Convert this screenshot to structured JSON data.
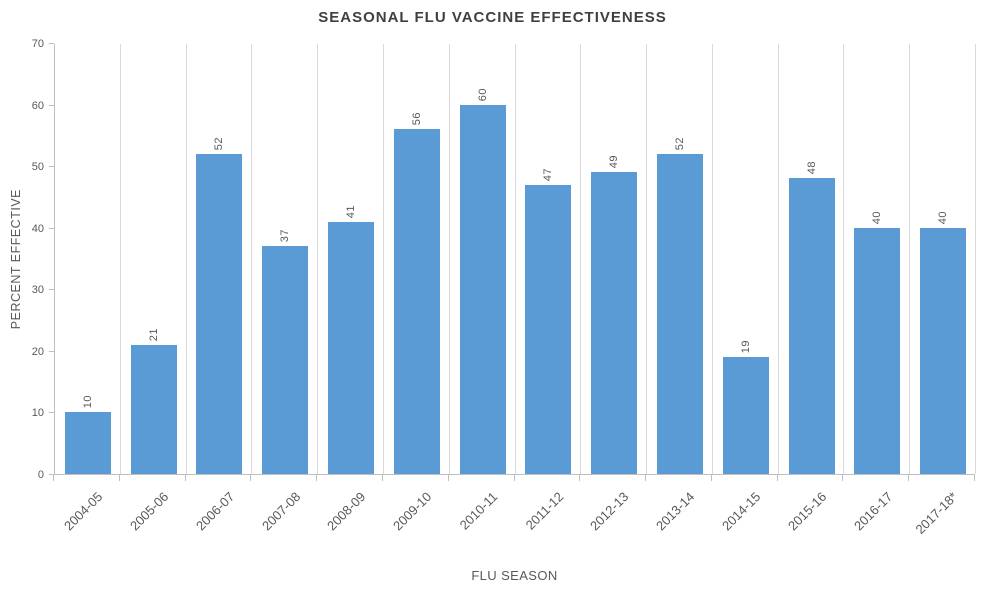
{
  "chart_data": {
    "type": "bar",
    "title": "SEASONAL FLU VACCINE EFFECTIVENESS",
    "xlabel": "FLU SEASON",
    "ylabel": "PERCENT EFFECTIVE",
    "categories": [
      "2004-05",
      "2005-06",
      "2006-07",
      "2007-08",
      "2008-09",
      "2009-10",
      "2010-11",
      "2011-12",
      "2012-13",
      "2013-14",
      "2014-15",
      "2015-16",
      "2016-17",
      "2017-18*"
    ],
    "values": [
      10,
      21,
      52,
      37,
      41,
      56,
      60,
      47,
      49,
      52,
      19,
      48,
      40,
      40
    ],
    "ylim": [
      0,
      70
    ],
    "yticks": [
      0,
      10,
      20,
      30,
      40,
      50,
      60,
      70
    ],
    "legend": "none",
    "grid": "vertical-category-lines",
    "data_label_rotation": -90,
    "x_tick_rotation": -45,
    "colors": {
      "bar": "#5B9BD5",
      "title": "#404040",
      "axis_text": "#595959",
      "gridline": "#D9D9D9",
      "axis_line": "#BFBFBF",
      "background": "#FFFFFF"
    }
  }
}
